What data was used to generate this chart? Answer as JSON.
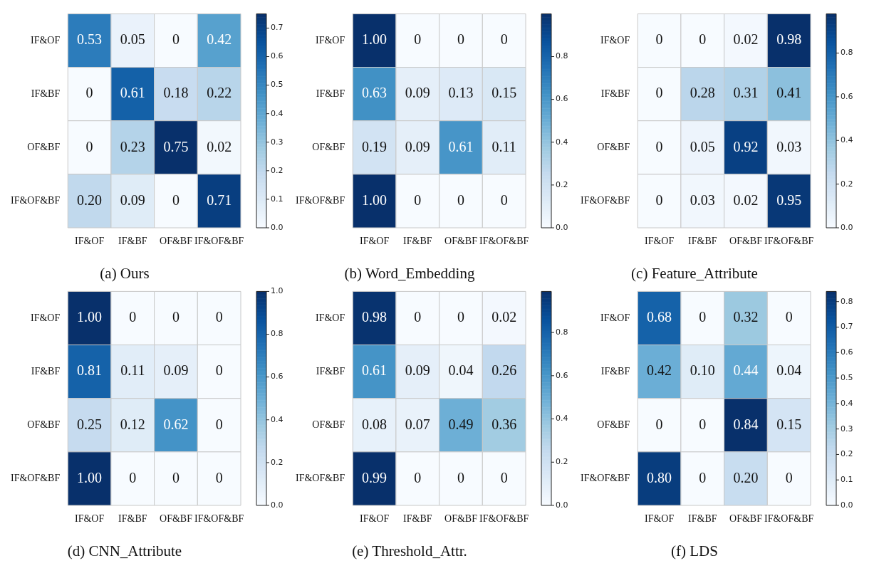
{
  "chart_data": [
    {
      "type": "heatmap",
      "title": "(a) Ours",
      "categories": [
        "IF&OF",
        "IF&BF",
        "OF&BF",
        "IF&OF&BF"
      ],
      "y_categories": [
        "IF&OF",
        "IF&BF",
        "OF&BF",
        "IF&OF&BF"
      ],
      "cells": [
        [
          0.53,
          0.05,
          0,
          0.42
        ],
        [
          0,
          0.61,
          0.18,
          0.22
        ],
        [
          0,
          0.23,
          0.75,
          0.02
        ],
        [
          0.2,
          0.09,
          0,
          0.71
        ]
      ],
      "cell_labels": [
        [
          "0.53",
          "0.05",
          "0",
          "0.42"
        ],
        [
          "0",
          "0.61",
          "0.18",
          "0.22"
        ],
        [
          "0",
          "0.23",
          "0.75",
          "0.02"
        ],
        [
          "0.20",
          "0.09",
          "0",
          "0.71"
        ]
      ],
      "clim": [
        0,
        0.75
      ],
      "cticks": [
        {
          "value": 0,
          "label": "0.0"
        },
        {
          "value": 0.1,
          "label": "0.1"
        },
        {
          "value": 0.2,
          "label": "0.2"
        },
        {
          "value": 0.3,
          "label": "0.3"
        },
        {
          "value": 0.4,
          "label": "0.4"
        },
        {
          "value": 0.5,
          "label": "0.5"
        },
        {
          "value": 0.6,
          "label": "0.6"
        },
        {
          "value": 0.7,
          "label": "0.7"
        }
      ]
    },
    {
      "type": "heatmap",
      "title": "(b) Word_Embedding",
      "categories": [
        "IF&OF",
        "IF&BF",
        "OF&BF",
        "IF&OF&BF"
      ],
      "y_categories": [
        "IF&OF",
        "IF&BF",
        "OF&BF",
        "IF&OF&BF"
      ],
      "cells": [
        [
          1,
          0,
          0,
          0
        ],
        [
          0.63,
          0.09,
          0.13,
          0.15
        ],
        [
          0.19,
          0.09,
          0.61,
          0.11
        ],
        [
          1,
          0,
          0,
          0
        ]
      ],
      "cell_labels": [
        [
          "1.00",
          "0",
          "0",
          "0"
        ],
        [
          "0.63",
          "0.09",
          "0.13",
          "0.15"
        ],
        [
          "0.19",
          "0.09",
          "0.61",
          "0.11"
        ],
        [
          "1.00",
          "0",
          "0",
          "0"
        ]
      ],
      "clim": [
        0,
        1
      ],
      "cticks": [
        {
          "value": 0,
          "label": "0.0"
        },
        {
          "value": 0.2,
          "label": "0.2"
        },
        {
          "value": 0.4,
          "label": "0.4"
        },
        {
          "value": 0.6,
          "label": "0.6"
        },
        {
          "value": 0.8,
          "label": "0.8"
        }
      ]
    },
    {
      "type": "heatmap",
      "title": "(c) Feature_Attribute",
      "categories": [
        "IF&OF",
        "IF&BF",
        "OF&BF",
        "IF&OF&BF"
      ],
      "y_categories": [
        "IF&OF",
        "IF&BF",
        "OF&BF",
        "IF&OF&BF"
      ],
      "cells": [
        [
          0,
          0,
          0.02,
          0.98
        ],
        [
          0,
          0.28,
          0.31,
          0.41
        ],
        [
          0,
          0.05,
          0.92,
          0.03
        ],
        [
          0,
          0.03,
          0.02,
          0.95
        ]
      ],
      "cell_labels": [
        [
          "0",
          "0",
          "0.02",
          "0.98"
        ],
        [
          "0",
          "0.28",
          "0.31",
          "0.41"
        ],
        [
          "0",
          "0.05",
          "0.92",
          "0.03"
        ],
        [
          "0",
          "0.03",
          "0.02",
          "0.95"
        ]
      ],
      "clim": [
        0,
        0.98
      ],
      "cticks": [
        {
          "value": 0,
          "label": "0.0"
        },
        {
          "value": 0.2,
          "label": "0.2"
        },
        {
          "value": 0.4,
          "label": "0.4"
        },
        {
          "value": 0.6,
          "label": "0.6"
        },
        {
          "value": 0.8,
          "label": "0.8"
        }
      ]
    },
    {
      "type": "heatmap",
      "title": "(d) CNN_Attribute",
      "categories": [
        "IF&OF",
        "IF&BF",
        "OF&BF",
        "IF&OF&BF"
      ],
      "y_categories": [
        "IF&OF",
        "IF&BF",
        "OF&BF",
        "IF&OF&BF"
      ],
      "cells": [
        [
          1,
          0,
          0,
          0
        ],
        [
          0.81,
          0.11,
          0.09,
          0
        ],
        [
          0.25,
          0.12,
          0.62,
          0
        ],
        [
          1,
          0,
          0,
          0
        ]
      ],
      "cell_labels": [
        [
          "1.00",
          "0",
          "0",
          "0"
        ],
        [
          "0.81",
          "0.11",
          "0.09",
          "0"
        ],
        [
          "0.25",
          "0.12",
          "0.62",
          "0"
        ],
        [
          "1.00",
          "0",
          "0",
          "0"
        ]
      ],
      "clim": [
        0,
        1
      ],
      "cticks": [
        {
          "value": 0,
          "label": "0.0"
        },
        {
          "value": 0.2,
          "label": "0.2"
        },
        {
          "value": 0.4,
          "label": "0.4"
        },
        {
          "value": 0.6,
          "label": "0.6"
        },
        {
          "value": 0.8,
          "label": "0.8"
        },
        {
          "value": 1,
          "label": "1.0"
        }
      ]
    },
    {
      "type": "heatmap",
      "title": "(e) Threshold_Attr.",
      "categories": [
        "IF&OF",
        "IF&BF",
        "OF&BF",
        "IF&OF&BF"
      ],
      "y_categories": [
        "IF&OF",
        "IF&BF",
        "OF&BF",
        "IF&OF&BF"
      ],
      "cells": [
        [
          0.98,
          0,
          0,
          0.02
        ],
        [
          0.61,
          0.09,
          0.04,
          0.26
        ],
        [
          0.08,
          0.07,
          0.49,
          0.36
        ],
        [
          0.99,
          0,
          0,
          0
        ]
      ],
      "cell_labels": [
        [
          "0.98",
          "0",
          "0",
          "0.02"
        ],
        [
          "0.61",
          "0.09",
          "0.04",
          "0.26"
        ],
        [
          "0.08",
          "0.07",
          "0.49",
          "0.36"
        ],
        [
          "0.99",
          "0",
          "0",
          "0"
        ]
      ],
      "clim": [
        0,
        0.99
      ],
      "cticks": [
        {
          "value": 0,
          "label": "0.0"
        },
        {
          "value": 0.2,
          "label": "0.2"
        },
        {
          "value": 0.4,
          "label": "0.4"
        },
        {
          "value": 0.6,
          "label": "0.6"
        },
        {
          "value": 0.8,
          "label": "0.8"
        }
      ]
    },
    {
      "type": "heatmap",
      "title": "(f) LDS",
      "categories": [
        "IF&OF",
        "IF&BF",
        "OF&BF",
        "IF&OF&BF"
      ],
      "y_categories": [
        "IF&OF",
        "IF&BF",
        "OF&BF",
        "IF&OF&BF"
      ],
      "cells": [
        [
          0.68,
          0,
          0.32,
          0
        ],
        [
          0.42,
          0.1,
          0.44,
          0.04
        ],
        [
          0,
          0,
          0.84,
          0.15
        ],
        [
          0.8,
          0,
          0.2,
          0
        ]
      ],
      "cell_labels": [
        [
          "0.68",
          "0",
          "0.32",
          "0"
        ],
        [
          "0.42",
          "0.10",
          "0.44",
          "0.04"
        ],
        [
          "0",
          "0",
          "0.84",
          "0.15"
        ],
        [
          "0.80",
          "0",
          "0.20",
          "0"
        ]
      ],
      "clim": [
        0,
        0.84
      ],
      "cticks": [
        {
          "value": 0,
          "label": "0.0"
        },
        {
          "value": 0.1,
          "label": "0.1"
        },
        {
          "value": 0.2,
          "label": "0.2"
        },
        {
          "value": 0.3,
          "label": "0.3"
        },
        {
          "value": 0.4,
          "label": "0.4"
        },
        {
          "value": 0.5,
          "label": "0.5"
        },
        {
          "value": 0.6,
          "label": "0.6"
        },
        {
          "value": 0.7,
          "label": "0.7"
        },
        {
          "value": 0.8,
          "label": "0.8"
        }
      ]
    }
  ]
}
